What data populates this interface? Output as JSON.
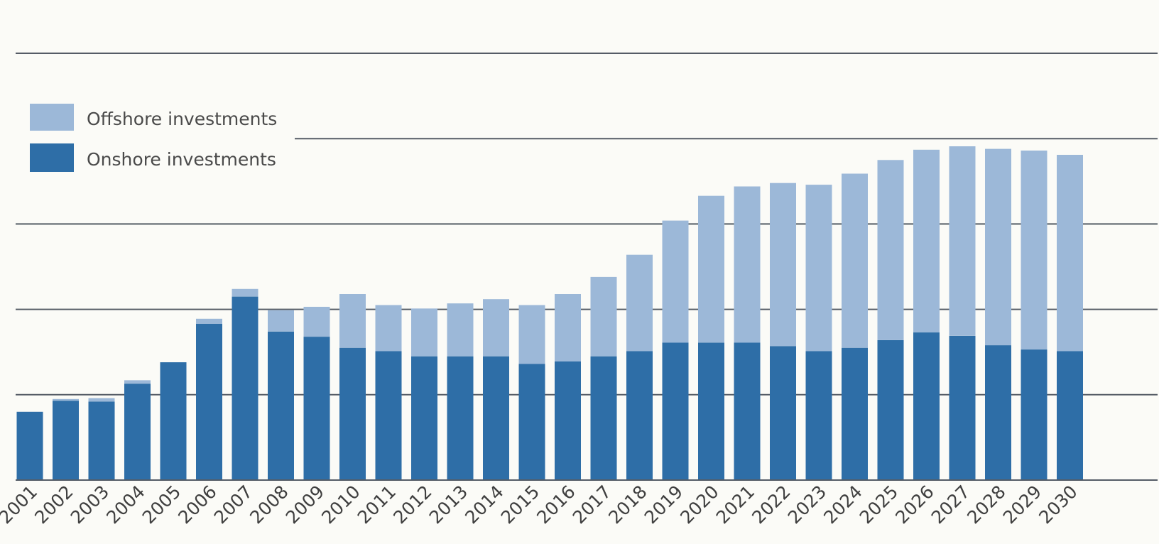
{
  "chart_data": {
    "type": "bar",
    "stacked": true,
    "title": "",
    "xlabel": "",
    "ylabel": "",
    "categories": [
      "2001",
      "2002",
      "2003",
      "2004",
      "2005",
      "2006",
      "2007",
      "2008",
      "2009",
      "2010",
      "2011",
      "2012",
      "2013",
      "2014",
      "2015",
      "2016",
      "2017",
      "2018",
      "2019",
      "2020",
      "2021",
      "2022",
      "2023",
      "2024",
      "2025",
      "2026",
      "2027",
      "2028",
      "2029",
      "2030"
    ],
    "series": [
      {
        "name": "Onshore investments",
        "color": "#2e6ea7",
        "values": [
          0.8,
          0.93,
          0.92,
          1.13,
          1.38,
          1.83,
          2.15,
          1.74,
          1.68,
          1.55,
          1.51,
          1.45,
          1.45,
          1.45,
          1.36,
          1.39,
          1.45,
          1.51,
          1.61,
          1.61,
          1.61,
          1.57,
          1.51,
          1.55,
          1.64,
          1.73,
          1.69,
          1.58,
          1.53,
          1.51
        ]
      },
      {
        "name": "Offshore investments",
        "color": "#9cb8d8",
        "values": [
          0.0,
          0.02,
          0.04,
          0.04,
          0.0,
          0.06,
          0.09,
          0.25,
          0.35,
          0.63,
          0.54,
          0.56,
          0.62,
          0.67,
          0.69,
          0.79,
          0.93,
          1.13,
          1.43,
          1.72,
          1.83,
          1.91,
          1.95,
          2.04,
          2.11,
          2.14,
          2.22,
          2.3,
          2.33,
          2.3
        ]
      }
    ],
    "ylim": [
      0,
      5
    ],
    "grid": "horizontal",
    "legend_position": "top-left"
  },
  "x_tick_labels": [
    "2001",
    "2002",
    "2003",
    "2004",
    "2005",
    "2006",
    "2007",
    "2008",
    "2009",
    "2010",
    "2011",
    "2012",
    "2013",
    "2014",
    "2015",
    "2016",
    "2017",
    "2018",
    "2019",
    "2020",
    "2021",
    "2022",
    "2023",
    "2024",
    "2025",
    "2026",
    "2027",
    "2028",
    "2029",
    "2030"
  ],
  "legend": {
    "items": [
      {
        "label": "Offshore investments",
        "color": "#9cb8d8"
      },
      {
        "label": "Onshore investments",
        "color": "#2e6ea7"
      }
    ]
  }
}
